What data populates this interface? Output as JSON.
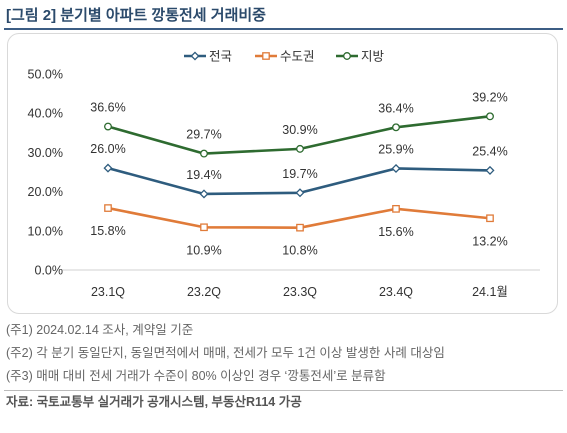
{
  "figure": {
    "title": "[그림 2] 분기별 아파트 깡통전세 거래비중"
  },
  "chart_data": {
    "type": "line",
    "title": "",
    "xlabel": "",
    "ylabel": "",
    "categories": [
      "23.1Q",
      "23.2Q",
      "23.3Q",
      "23.4Q",
      "24.1월"
    ],
    "ylim": [
      0,
      50
    ],
    "yticks": [
      "0.0%",
      "10.0%",
      "20.0%",
      "30.0%",
      "40.0%",
      "50.0%"
    ],
    "grid": false,
    "legend_position": "top",
    "series": [
      {
        "name": "전국",
        "values": [
          26.0,
          19.4,
          19.7,
          25.9,
          25.4
        ],
        "labels": [
          "26.0%",
          "19.4%",
          "19.7%",
          "25.9%",
          "25.4%"
        ],
        "color": "#2e5c7e",
        "marker": "diamond"
      },
      {
        "name": "수도권",
        "values": [
          15.8,
          10.9,
          10.8,
          15.6,
          13.2
        ],
        "labels": [
          "15.8%",
          "10.9%",
          "10.8%",
          "15.6%",
          "13.2%"
        ],
        "color": "#e07b39",
        "marker": "square"
      },
      {
        "name": "지방",
        "values": [
          36.6,
          29.7,
          30.9,
          36.4,
          39.2
        ],
        "labels": [
          "36.6%",
          "29.7%",
          "30.9%",
          "36.4%",
          "39.2%"
        ],
        "color": "#2e6b30",
        "marker": "circle"
      }
    ]
  },
  "notes": [
    "(주1) 2024.02.14 조사, 계약일 기준",
    "(주2) 각 분기 동일단지, 동일면적에서 매매, 전세가 모두 1건 이상 발생한 사례 대상임",
    "(주3) 매매 대비 전세 거래가 수준이 80% 이상인 경우 ‘깡통전세’로 분류함"
  ],
  "source": "자료: 국토교통부 실거래가 공개시스템, 부동산R114 가공"
}
